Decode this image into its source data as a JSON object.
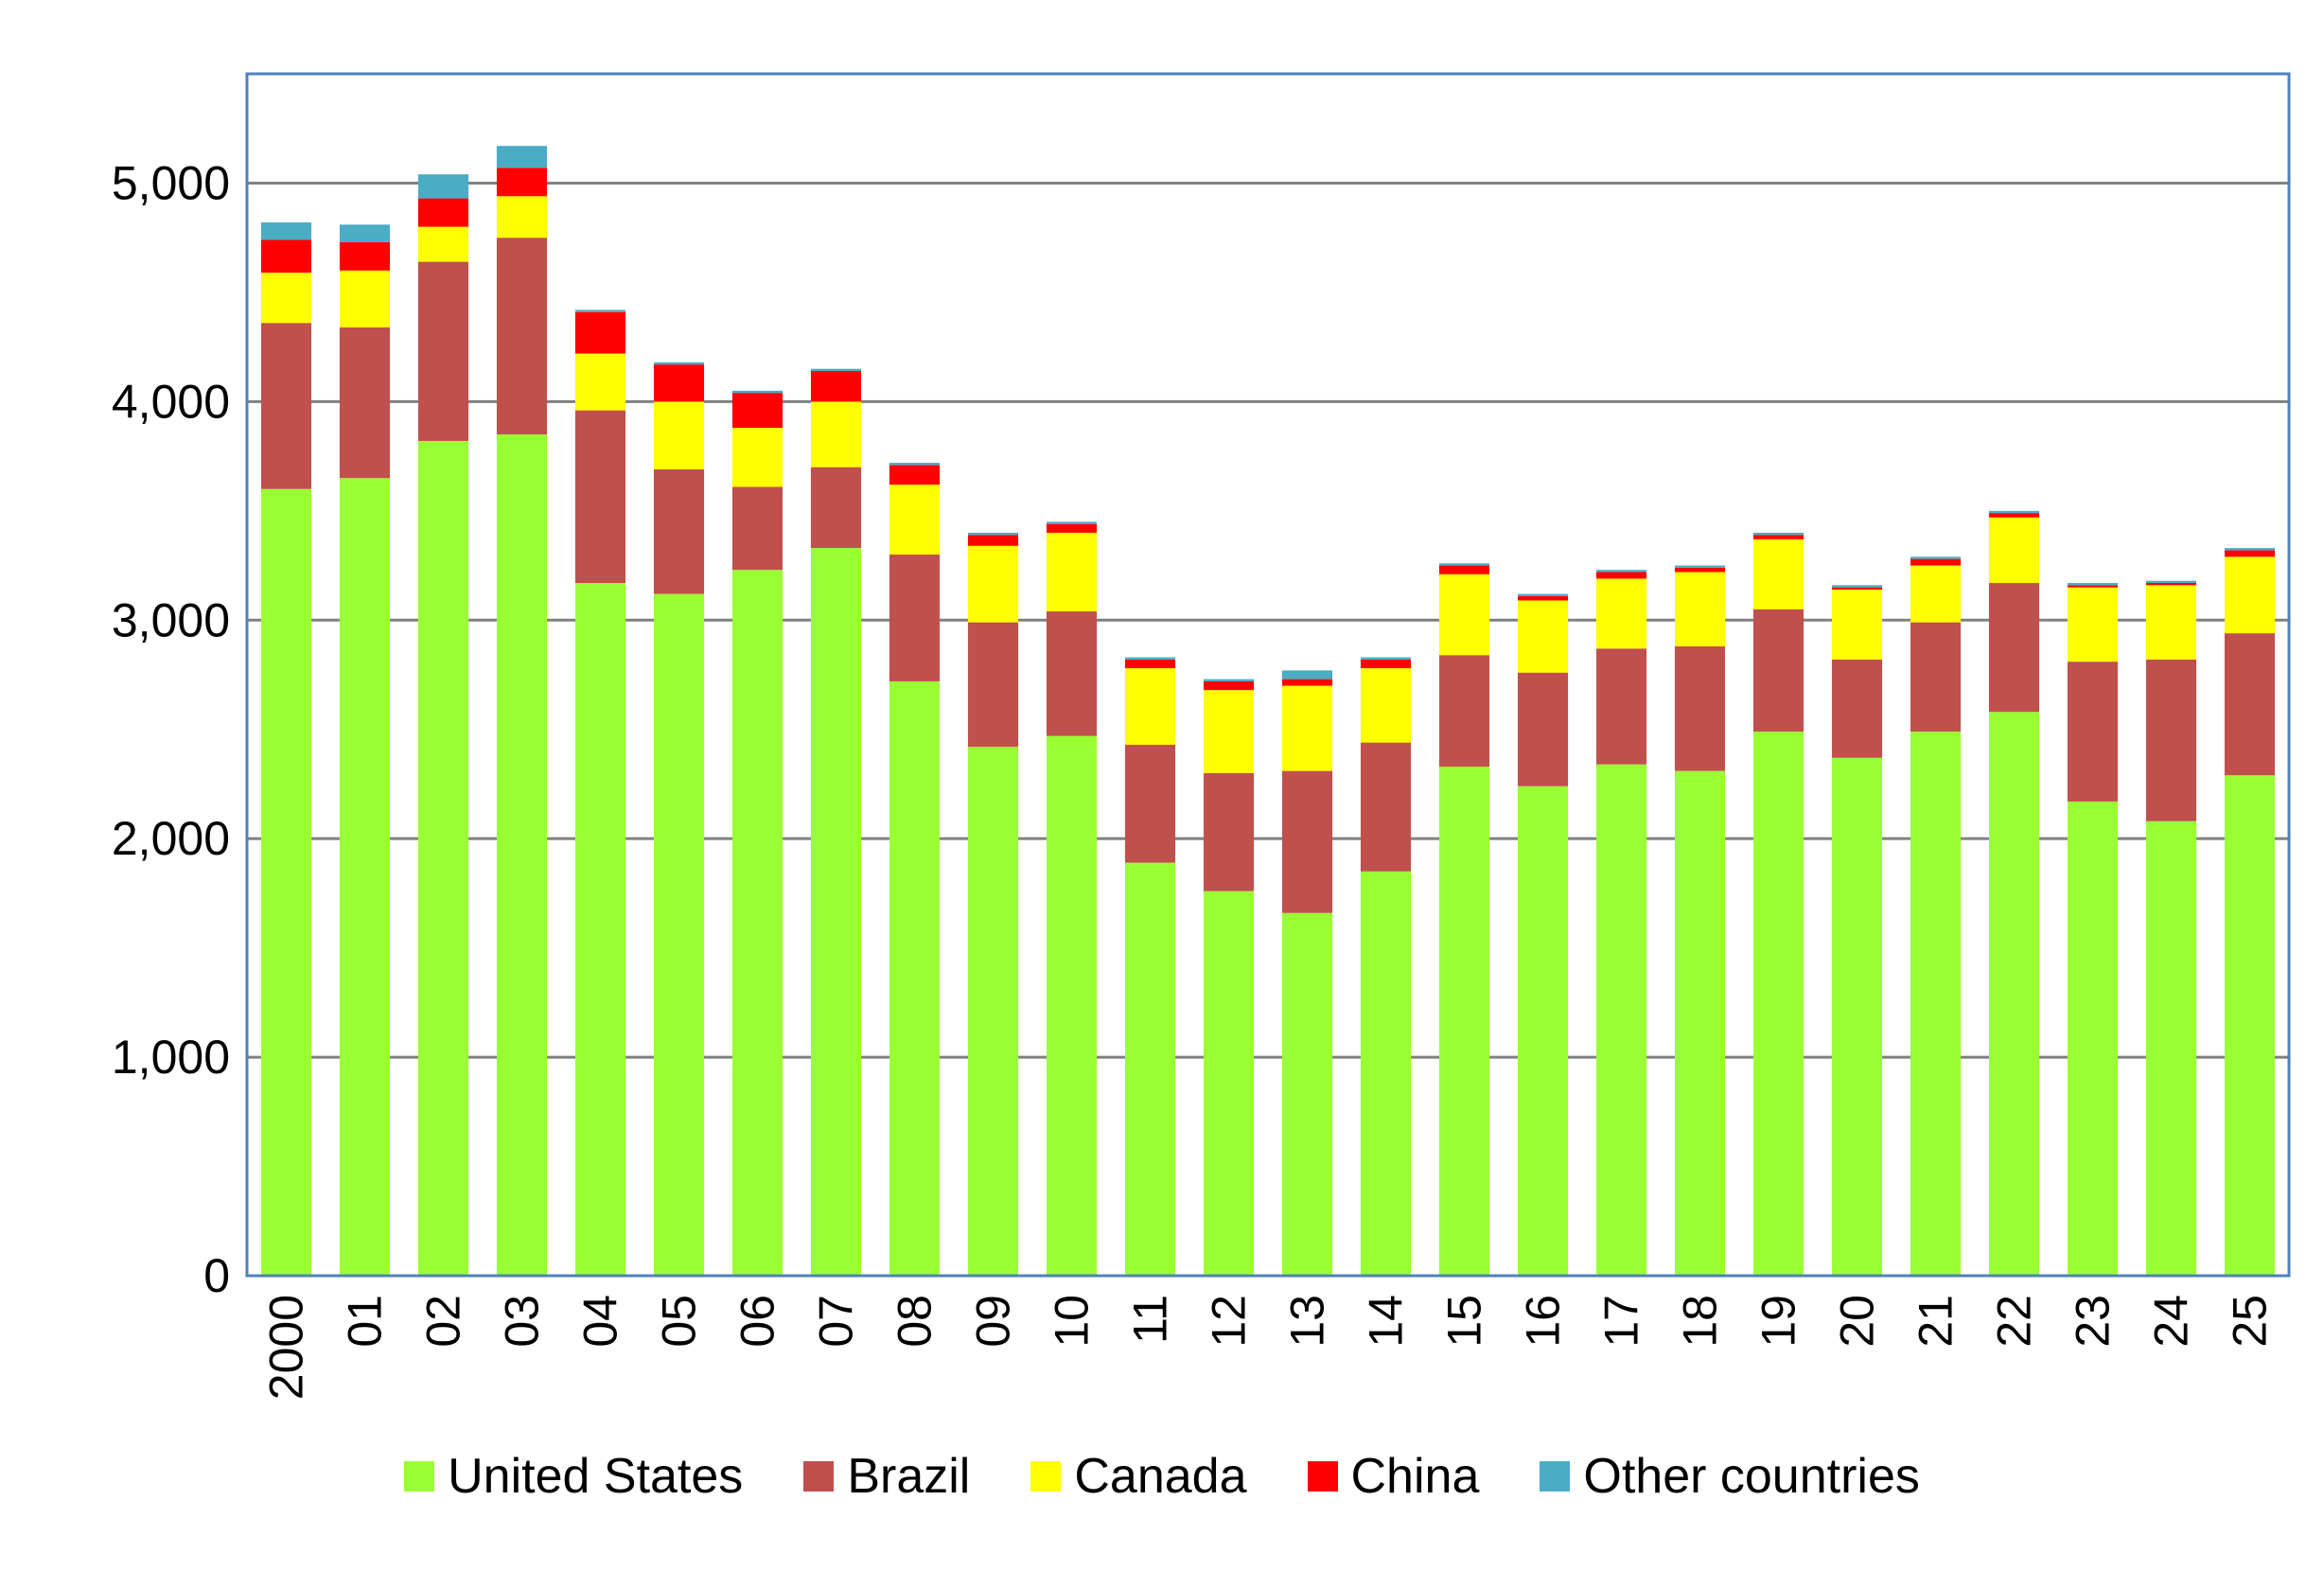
{
  "chart_data": {
    "type": "bar",
    "stacked": true,
    "title": "",
    "xlabel": "",
    "ylabel": "",
    "ylim": [
      0,
      5500
    ],
    "yticks": [
      0,
      1000,
      2000,
      3000,
      4000,
      5000
    ],
    "ytick_labels": [
      "0",
      "1,000",
      "2,000",
      "3,000",
      "4,000",
      "5,000"
    ],
    "grid": true,
    "legend_position": "bottom",
    "categories": [
      "2000",
      "01",
      "02",
      "03",
      "04",
      "05",
      "06",
      "07",
      "08",
      "09",
      "10",
      "11",
      "12",
      "13",
      "14",
      "15",
      "16",
      "17",
      "18",
      "19",
      "20",
      "21",
      "22",
      "23",
      "24",
      "25"
    ],
    "series": [
      {
        "name": "United States",
        "color": "#99FF33",
        "values": [
          3600,
          3650,
          3820,
          3850,
          3170,
          3120,
          3230,
          3330,
          2720,
          2420,
          2470,
          1890,
          1760,
          1660,
          1850,
          2330,
          2240,
          2340,
          2310,
          2490,
          2370,
          2490,
          2580,
          2170,
          2080,
          2290
        ]
      },
      {
        "name": "Brazil",
        "color": "#C0504D",
        "values": [
          760,
          690,
          820,
          900,
          790,
          570,
          380,
          370,
          580,
          570,
          570,
          540,
          540,
          650,
          590,
          510,
          520,
          530,
          570,
          560,
          450,
          500,
          590,
          640,
          740,
          650
        ]
      },
      {
        "name": "Canada",
        "color": "#FFFF00",
        "values": [
          230,
          260,
          160,
          190,
          260,
          310,
          270,
          300,
          320,
          350,
          360,
          350,
          380,
          390,
          340,
          370,
          330,
          320,
          340,
          320,
          320,
          260,
          300,
          340,
          340,
          350
        ]
      },
      {
        "name": "China",
        "color": "#FF0000",
        "values": [
          150,
          130,
          130,
          130,
          190,
          170,
          160,
          140,
          90,
          50,
          40,
          40,
          40,
          30,
          40,
          40,
          20,
          30,
          20,
          20,
          10,
          30,
          20,
          10,
          10,
          30
        ]
      },
      {
        "name": "Other countries",
        "color": "#4BACC6",
        "values": [
          80,
          80,
          110,
          100,
          10,
          10,
          10,
          10,
          10,
          10,
          10,
          10,
          10,
          40,
          10,
          10,
          10,
          10,
          10,
          10,
          10,
          10,
          10,
          10,
          10,
          10
        ]
      }
    ]
  }
}
